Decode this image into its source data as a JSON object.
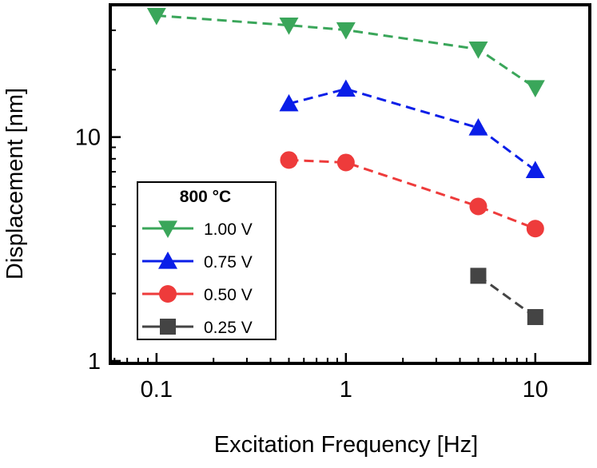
{
  "chart_data": {
    "type": "line",
    "xlabel": "Excitation Frequency [Hz]",
    "ylabel": "Displacement [nm]",
    "xscale": "log",
    "yscale": "log",
    "xlim": [
      0.057,
      19.4
    ],
    "ylim": [
      0.975,
      39
    ],
    "xticks": [
      0.1,
      1,
      10
    ],
    "yticks": [
      1,
      10
    ],
    "legend_title": "800 °C",
    "legend_loc": "lower left",
    "series": [
      {
        "name": "1.00 V",
        "color": "#3aa65a",
        "marker": "triangle-down",
        "x": [
          0.1,
          0.5,
          1,
          5,
          10
        ],
        "values": [
          34.9,
          31.6,
          30.1,
          24.7,
          16.6
        ]
      },
      {
        "name": "0.75 V",
        "color": "#0a1ee8",
        "marker": "triangle-up",
        "x": [
          0.5,
          1,
          5,
          10
        ],
        "values": [
          14.1,
          16.4,
          11.0,
          7.1
        ]
      },
      {
        "name": "0.50 V",
        "color": "#ee3b3b",
        "marker": "circle",
        "x": [
          0.5,
          1,
          5,
          10
        ],
        "values": [
          7.9,
          7.7,
          4.9,
          3.9
        ]
      },
      {
        "name": "0.25 V",
        "color": "#444444",
        "marker": "square",
        "x": [
          5,
          10
        ],
        "values": [
          2.4,
          1.57
        ]
      }
    ]
  }
}
